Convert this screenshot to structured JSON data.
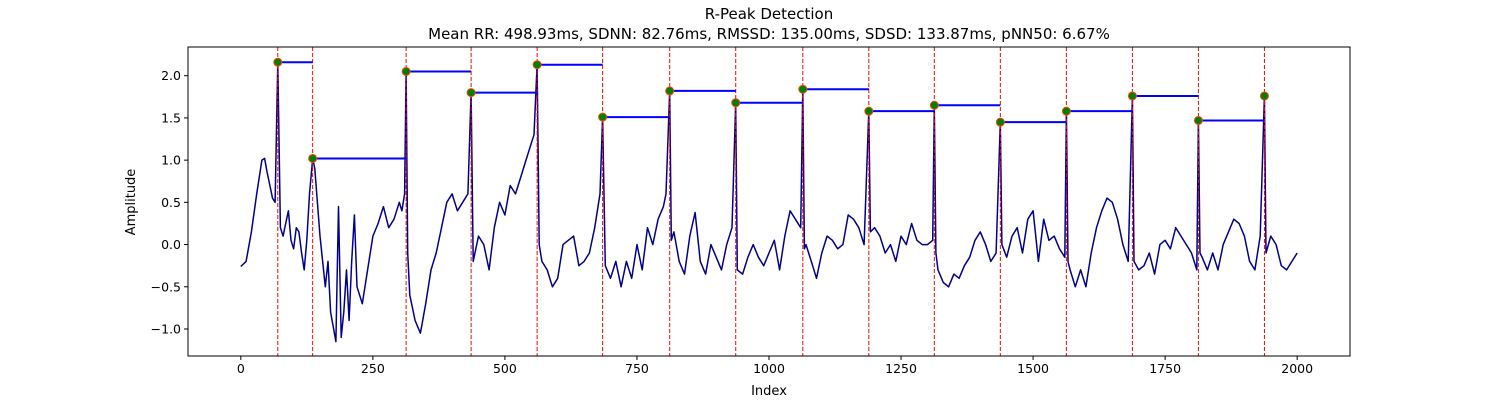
{
  "chart_data": {
    "type": "line",
    "title": "R-Peak Detection",
    "subtitle": "Mean RR: 498.93ms, SDNN: 82.76ms, RMSSD: 135.00ms, SDSD: 133.87ms, pNN50: 6.67%",
    "xlabel": "Index",
    "ylabel": "Amplitude",
    "xlim": [
      -100,
      2100
    ],
    "ylim": [
      -1.32,
      2.34
    ],
    "xticks": [
      0,
      250,
      500,
      750,
      1000,
      1250,
      1500,
      1750,
      2000
    ],
    "yticks": [
      -1.0,
      -0.5,
      0.0,
      0.5,
      1.0,
      1.5,
      2.0
    ],
    "grid": false,
    "colors": {
      "signal": "#00008b",
      "peak_lines": "#ff0000",
      "peak_markers_fill": "#008000",
      "peak_markers_edge": "#ff4500",
      "rr_segments": "#0000ff"
    },
    "peaks": {
      "x": [
        70,
        136,
        313,
        436,
        561,
        685,
        812,
        937,
        1064,
        1189,
        1313,
        1438,
        1563,
        1688,
        1813,
        1938
      ],
      "y": [
        2.16,
        1.02,
        2.05,
        1.8,
        2.13,
        1.51,
        1.82,
        1.68,
        1.84,
        1.58,
        1.65,
        1.45,
        1.58,
        1.76,
        1.47,
        1.76
      ]
    },
    "signal": {
      "x": [
        0,
        10,
        20,
        30,
        40,
        45,
        50,
        55,
        60,
        65,
        70,
        75,
        80,
        85,
        90,
        95,
        100,
        105,
        110,
        115,
        120,
        125,
        130,
        136,
        140,
        145,
        150,
        160,
        165,
        170,
        180,
        185,
        190,
        195,
        200,
        205,
        210,
        215,
        220,
        230,
        240,
        250,
        260,
        270,
        280,
        290,
        300,
        305,
        310,
        313,
        316,
        320,
        330,
        340,
        350,
        360,
        370,
        380,
        390,
        400,
        410,
        420,
        430,
        436,
        440,
        450,
        460,
        470,
        480,
        490,
        500,
        510,
        520,
        530,
        540,
        550,
        555,
        561,
        565,
        570,
        580,
        590,
        600,
        610,
        620,
        630,
        640,
        650,
        660,
        670,
        680,
        685,
        690,
        700,
        710,
        720,
        730,
        740,
        750,
        760,
        770,
        780,
        790,
        800,
        805,
        812,
        815,
        820,
        830,
        840,
        850,
        860,
        870,
        880,
        890,
        900,
        910,
        920,
        930,
        937,
        940,
        950,
        960,
        970,
        980,
        990,
        1000,
        1010,
        1020,
        1030,
        1040,
        1050,
        1060,
        1064,
        1067,
        1070,
        1080,
        1090,
        1100,
        1110,
        1120,
        1130,
        1140,
        1150,
        1160,
        1170,
        1180,
        1189,
        1192,
        1200,
        1210,
        1220,
        1230,
        1240,
        1250,
        1260,
        1270,
        1280,
        1290,
        1300,
        1310,
        1313,
        1316,
        1320,
        1330,
        1340,
        1350,
        1360,
        1370,
        1380,
        1390,
        1400,
        1410,
        1420,
        1430,
        1438,
        1441,
        1450,
        1460,
        1470,
        1480,
        1490,
        1500,
        1510,
        1520,
        1530,
        1540,
        1550,
        1560,
        1563,
        1566,
        1570,
        1580,
        1590,
        1600,
        1610,
        1620,
        1630,
        1640,
        1650,
        1660,
        1670,
        1680,
        1688,
        1691,
        1700,
        1710,
        1720,
        1730,
        1740,
        1750,
        1760,
        1770,
        1780,
        1790,
        1800,
        1810,
        1813,
        1816,
        1820,
        1830,
        1840,
        1850,
        1860,
        1870,
        1880,
        1890,
        1900,
        1910,
        1920,
        1930,
        1938,
        1941,
        1950,
        1960,
        1970,
        1980,
        1990,
        2000
      ],
      "y": [
        -0.26,
        -0.2,
        0.15,
        0.6,
        1.0,
        1.02,
        0.85,
        0.7,
        0.55,
        0.5,
        2.16,
        0.2,
        0.1,
        0.25,
        0.4,
        0.05,
        -0.05,
        0.2,
        0.15,
        -0.1,
        -0.3,
        0.05,
        0.6,
        1.02,
        0.9,
        0.5,
        0.1,
        -0.5,
        -0.2,
        -0.8,
        -1.15,
        0.45,
        -1.1,
        -0.8,
        -0.3,
        -0.9,
        -0.2,
        0.35,
        -0.5,
        -0.7,
        -0.3,
        0.1,
        0.25,
        0.45,
        0.2,
        0.3,
        0.5,
        0.4,
        0.6,
        2.05,
        -0.1,
        -0.6,
        -0.9,
        -1.05,
        -0.7,
        -0.3,
        -0.1,
        0.2,
        0.5,
        0.6,
        0.4,
        0.5,
        0.6,
        1.8,
        -0.2,
        0.1,
        0.0,
        -0.3,
        0.2,
        0.5,
        0.35,
        0.7,
        0.6,
        0.8,
        1.0,
        1.2,
        1.3,
        2.13,
        0.0,
        -0.2,
        -0.3,
        -0.5,
        -0.4,
        0.0,
        0.05,
        0.1,
        -0.25,
        -0.2,
        -0.1,
        0.2,
        0.6,
        1.51,
        -0.25,
        -0.4,
        -0.2,
        -0.5,
        -0.2,
        -0.4,
        0.0,
        -0.3,
        0.2,
        0.0,
        0.3,
        0.45,
        0.6,
        1.82,
        0.05,
        0.15,
        -0.2,
        -0.35,
        0.1,
        0.38,
        -0.2,
        -0.35,
        0.0,
        -0.15,
        -0.3,
        0.0,
        0.2,
        1.68,
        -0.3,
        -0.35,
        -0.15,
        0.0,
        -0.15,
        -0.25,
        -0.1,
        0.05,
        -0.3,
        0.1,
        0.4,
        0.3,
        0.2,
        1.84,
        -0.05,
        0.0,
        -0.2,
        -0.4,
        -0.1,
        0.1,
        0.05,
        -0.05,
        0.0,
        0.35,
        0.3,
        0.2,
        0.0,
        1.58,
        0.15,
        0.2,
        0.1,
        -0.1,
        0.0,
        -0.2,
        0.1,
        0.0,
        0.25,
        0.05,
        0.0,
        0.0,
        0.05,
        1.65,
        -0.1,
        -0.3,
        -0.45,
        -0.5,
        -0.35,
        -0.4,
        -0.25,
        -0.15,
        0.05,
        0.15,
        0.0,
        -0.2,
        -0.1,
        1.45,
        0.0,
        -0.15,
        0.1,
        0.2,
        -0.1,
        0.3,
        0.4,
        -0.2,
        0.3,
        0.05,
        0.1,
        -0.05,
        -0.15,
        1.58,
        -0.2,
        -0.3,
        -0.5,
        -0.3,
        -0.5,
        -0.1,
        0.2,
        0.4,
        0.55,
        0.5,
        0.3,
        0.0,
        -0.2,
        1.76,
        -0.2,
        -0.3,
        -0.25,
        -0.1,
        -0.35,
        0.0,
        0.05,
        -0.05,
        0.2,
        0.1,
        0.0,
        -0.1,
        -0.3,
        1.47,
        -0.1,
        -0.15,
        -0.3,
        -0.1,
        -0.3,
        0.0,
        0.15,
        0.3,
        0.25,
        0.1,
        -0.2,
        -0.3,
        0.1,
        1.76,
        -0.1,
        0.1,
        0.0,
        -0.25,
        -0.3,
        -0.2,
        -0.1
      ]
    }
  }
}
